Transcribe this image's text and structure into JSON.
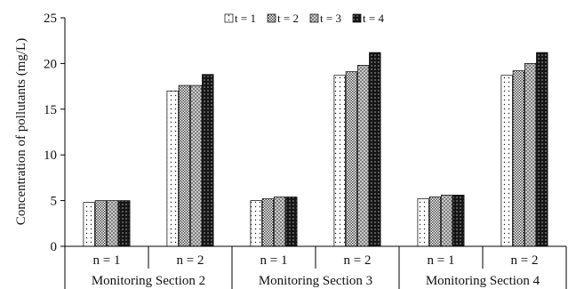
{
  "chart_data": {
    "type": "bar",
    "title": "",
    "xlabel": "",
    "ylabel": "Concentration of pollutants (mg/L)",
    "ylim": [
      0,
      25
    ],
    "yticks": [
      0,
      5,
      10,
      15,
      20,
      25
    ],
    "grid": false,
    "legend_position": "top",
    "groups": [
      {
        "label": "Monitoring Section 2",
        "categories": [
          "n = 1",
          "n = 2"
        ]
      },
      {
        "label": "Monitoring Section 3",
        "categories": [
          "n = 1",
          "n = 2"
        ]
      },
      {
        "label": "Monitoring Section 4",
        "categories": [
          "n = 1",
          "n = 2"
        ]
      }
    ],
    "categories": [
      "n = 1",
      "n = 2",
      "n = 1",
      "n = 2",
      "n = 1",
      "n = 2"
    ],
    "series": [
      {
        "name": "t = 1",
        "values": [
          4.8,
          17.0,
          5.0,
          18.7,
          5.2,
          18.7
        ]
      },
      {
        "name": "t = 2",
        "values": [
          5.0,
          17.6,
          5.2,
          19.1,
          5.4,
          19.2
        ]
      },
      {
        "name": "t = 3",
        "values": [
          5.0,
          17.6,
          5.4,
          19.8,
          5.6,
          20.0
        ]
      },
      {
        "name": "t = 4",
        "values": [
          5.0,
          18.8,
          5.4,
          21.2,
          5.6,
          21.2
        ]
      }
    ]
  }
}
